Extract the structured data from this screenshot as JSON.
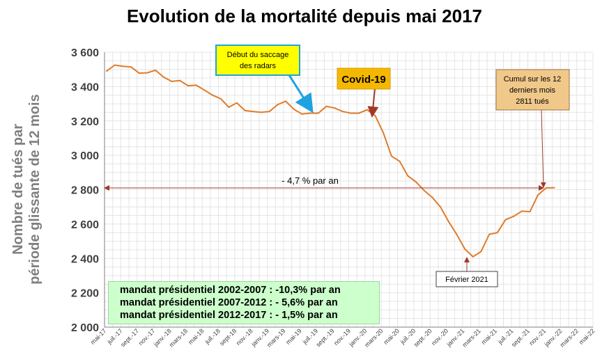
{
  "title": "Evolution de la mortalité depuis mai 2017",
  "ylabel_lines": [
    "Nombre de tués par",
    "période  glissante de 12 mois"
  ],
  "annotations": {
    "saccage": [
      "Début du saccage",
      "des radars"
    ],
    "covid": "Covid-19",
    "cumul": [
      "Cumul sur les 12",
      "derniers mois",
      "2811 tués"
    ],
    "trend": "- 4,7 % par an",
    "fevrier": "Février 2021"
  },
  "mandats": [
    "mandat présidentiel 2002-2007 : -10,3% par an",
    "mandat présidentiel 2007-2012 : - 5,6% par an",
    "mandat présidentiel 2012-2017 : - 1,5% par an"
  ],
  "colors": {
    "line": "#e07b2a",
    "saccage_box": "#ffff00",
    "saccage_border": "#1fa2e0",
    "covid_box": "#f5b800",
    "covid_arrow": "#a0392a",
    "cumul_box": "#f0c88a",
    "mandats_box": "#ccffcc",
    "trend_arrow": "#a0392a"
  },
  "chart_data": {
    "type": "line",
    "title": "Evolution de la mortalité depuis mai 2017",
    "ylabel": "Nombre de tués par période  glissante de 12 mois",
    "ylim": [
      2000,
      3600
    ],
    "yticks": [
      "2 000",
      "2 200",
      "2 400",
      "2 600",
      "2 800",
      "3 000",
      "3 200",
      "3 400",
      "3 600"
    ],
    "grid": true,
    "tick_labels": [
      "mai-17",
      "juil.-17",
      "sept.-17",
      "nov.-17",
      "janv.-18",
      "mars-18",
      "mai-18",
      "juil.-18",
      "sept-18",
      "nov.-18",
      "janv.-19",
      "mars-19",
      "mai-19",
      "juil.-19",
      "sept.-19",
      "nov.-19",
      "janv.-20",
      "mars-20",
      "mai-20",
      "juil.-20",
      "sept.-20",
      "nov.-20",
      "janv.-21",
      "mars-21",
      "mai-21",
      "juil.-21",
      "sept.-21",
      "nov.-21",
      "janv.-22",
      "mars-22",
      "mai-22"
    ],
    "x": [
      "mai-17",
      "juin-17",
      "juil.-17",
      "août-17",
      "sept.-17",
      "oct.-17",
      "nov.-17",
      "déc.-17",
      "janv.-18",
      "févr.-18",
      "mars-18",
      "avr.-18",
      "mai-18",
      "juin-18",
      "juil.-18",
      "août-18",
      "sept-18",
      "oct.-18",
      "nov.-18",
      "déc.-18",
      "janv.-19",
      "févr.-19",
      "mars-19",
      "avr.-19",
      "mai-19",
      "juin-19",
      "juil.-19",
      "août-19",
      "sept.-19",
      "oct.-19",
      "nov.-19",
      "déc.-19",
      "janv.-20",
      "févr.-20",
      "mars-20",
      "avr.-20",
      "mai-20",
      "juin-20",
      "juil.-20",
      "août-20",
      "sept.-20",
      "oct.-20",
      "nov.-20",
      "déc.-20",
      "janv.-21",
      "févr.-21",
      "mars-21",
      "avr.-21",
      "mai-21",
      "juin-21",
      "juil.-21",
      "août-21",
      "sept.-21",
      "oct.-21",
      "nov.-21",
      "déc.-21"
    ],
    "values": [
      3490,
      3525,
      3518,
      3514,
      3478,
      3480,
      3495,
      3455,
      3430,
      3435,
      3405,
      3408,
      3380,
      3350,
      3330,
      3280,
      3305,
      3260,
      3255,
      3250,
      3255,
      3295,
      3315,
      3268,
      3240,
      3245,
      3245,
      3285,
      3275,
      3255,
      3245,
      3245,
      3265,
      3230,
      3130,
      2995,
      2965,
      2880,
      2845,
      2795,
      2755,
      2700,
      2615,
      2540,
      2455,
      2410,
      2440,
      2540,
      2550,
      2625,
      2645,
      2675,
      2672,
      2770,
      2810,
      2811
    ]
  }
}
